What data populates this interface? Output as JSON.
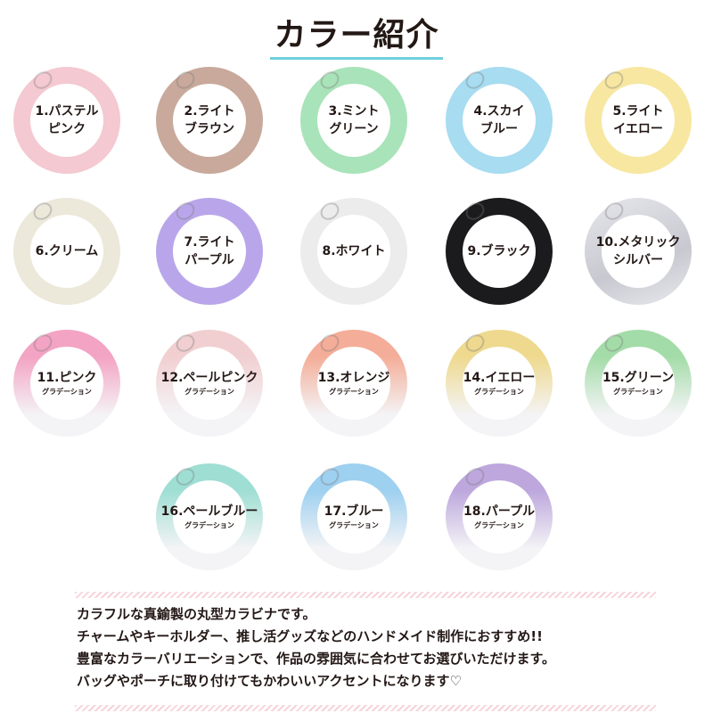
{
  "title": "カラー紹介",
  "colors": [
    {
      "line1": "1.パステル",
      "line2": "ピンク",
      "color": "#f4c9d1",
      "gradient": false
    },
    {
      "line1": "2.ライト",
      "line2": "ブラウン",
      "color": "#c8a99b",
      "gradient": false
    },
    {
      "line1": "3.ミント",
      "line2": "グリーン",
      "color": "#a9e3b9",
      "gradient": false
    },
    {
      "line1": "4.スカイ",
      "line2": "ブルー",
      "color": "#a7dcf1",
      "gradient": false
    },
    {
      "line1": "5.ライト",
      "line2": "イエロー",
      "color": "#f7e7a0",
      "gradient": false
    },
    {
      "line1": "6.クリーム",
      "line2": "",
      "color": "#ece8da",
      "gradient": false
    },
    {
      "line1": "7.ライト",
      "line2": "パープル",
      "color": "#b9a6ea",
      "gradient": false
    },
    {
      "line1": "8.ホワイト",
      "line2": "",
      "color": "#ececec",
      "gradient": false
    },
    {
      "line1": "9.ブラック",
      "line2": "",
      "color": "#1b1b1d",
      "gradient": false
    },
    {
      "line1": "10.メタリック",
      "line2": "シルバー",
      "color": "#d3d3da",
      "gradient": false
    },
    {
      "line1": "11.ピンク",
      "sub": "グラデーション",
      "color": "#f3a3c3",
      "gradient": true
    },
    {
      "line1": "12.ペールピンク",
      "sub": "グラデーション",
      "color": "#f1cfd1",
      "gradient": true
    },
    {
      "line1": "13.オレンジ",
      "sub": "グラデーション",
      "color": "#f4ad98",
      "gradient": true
    },
    {
      "line1": "14.イエロー",
      "sub": "グラデーション",
      "color": "#eed98e",
      "gradient": true
    },
    {
      "line1": "15.グリーン",
      "sub": "グラデーション",
      "color": "#a3dca8",
      "gradient": true
    },
    {
      "line1": "16.ペールブルー",
      "sub": "グラデーション",
      "color": "#9fded3",
      "gradient": true
    },
    {
      "line1": "17.ブルー",
      "sub": "グラデーション",
      "color": "#9ed0f0",
      "gradient": true
    },
    {
      "line1": "18.パープル",
      "sub": "グラデーション",
      "color": "#bda7dd",
      "gradient": true
    }
  ],
  "description": [
    "カラフルな真鍮製の丸型カラビナです。",
    "チャームやキーホルダー、推し活グッズなどのハンドメイド制作におすすめ!!",
    "豊富なカラーバリエーションで、作品の雰囲気に合わせてお選びいただけます。",
    "バッグやポーチに取り付けてもかわいいアクセントになります♡"
  ]
}
